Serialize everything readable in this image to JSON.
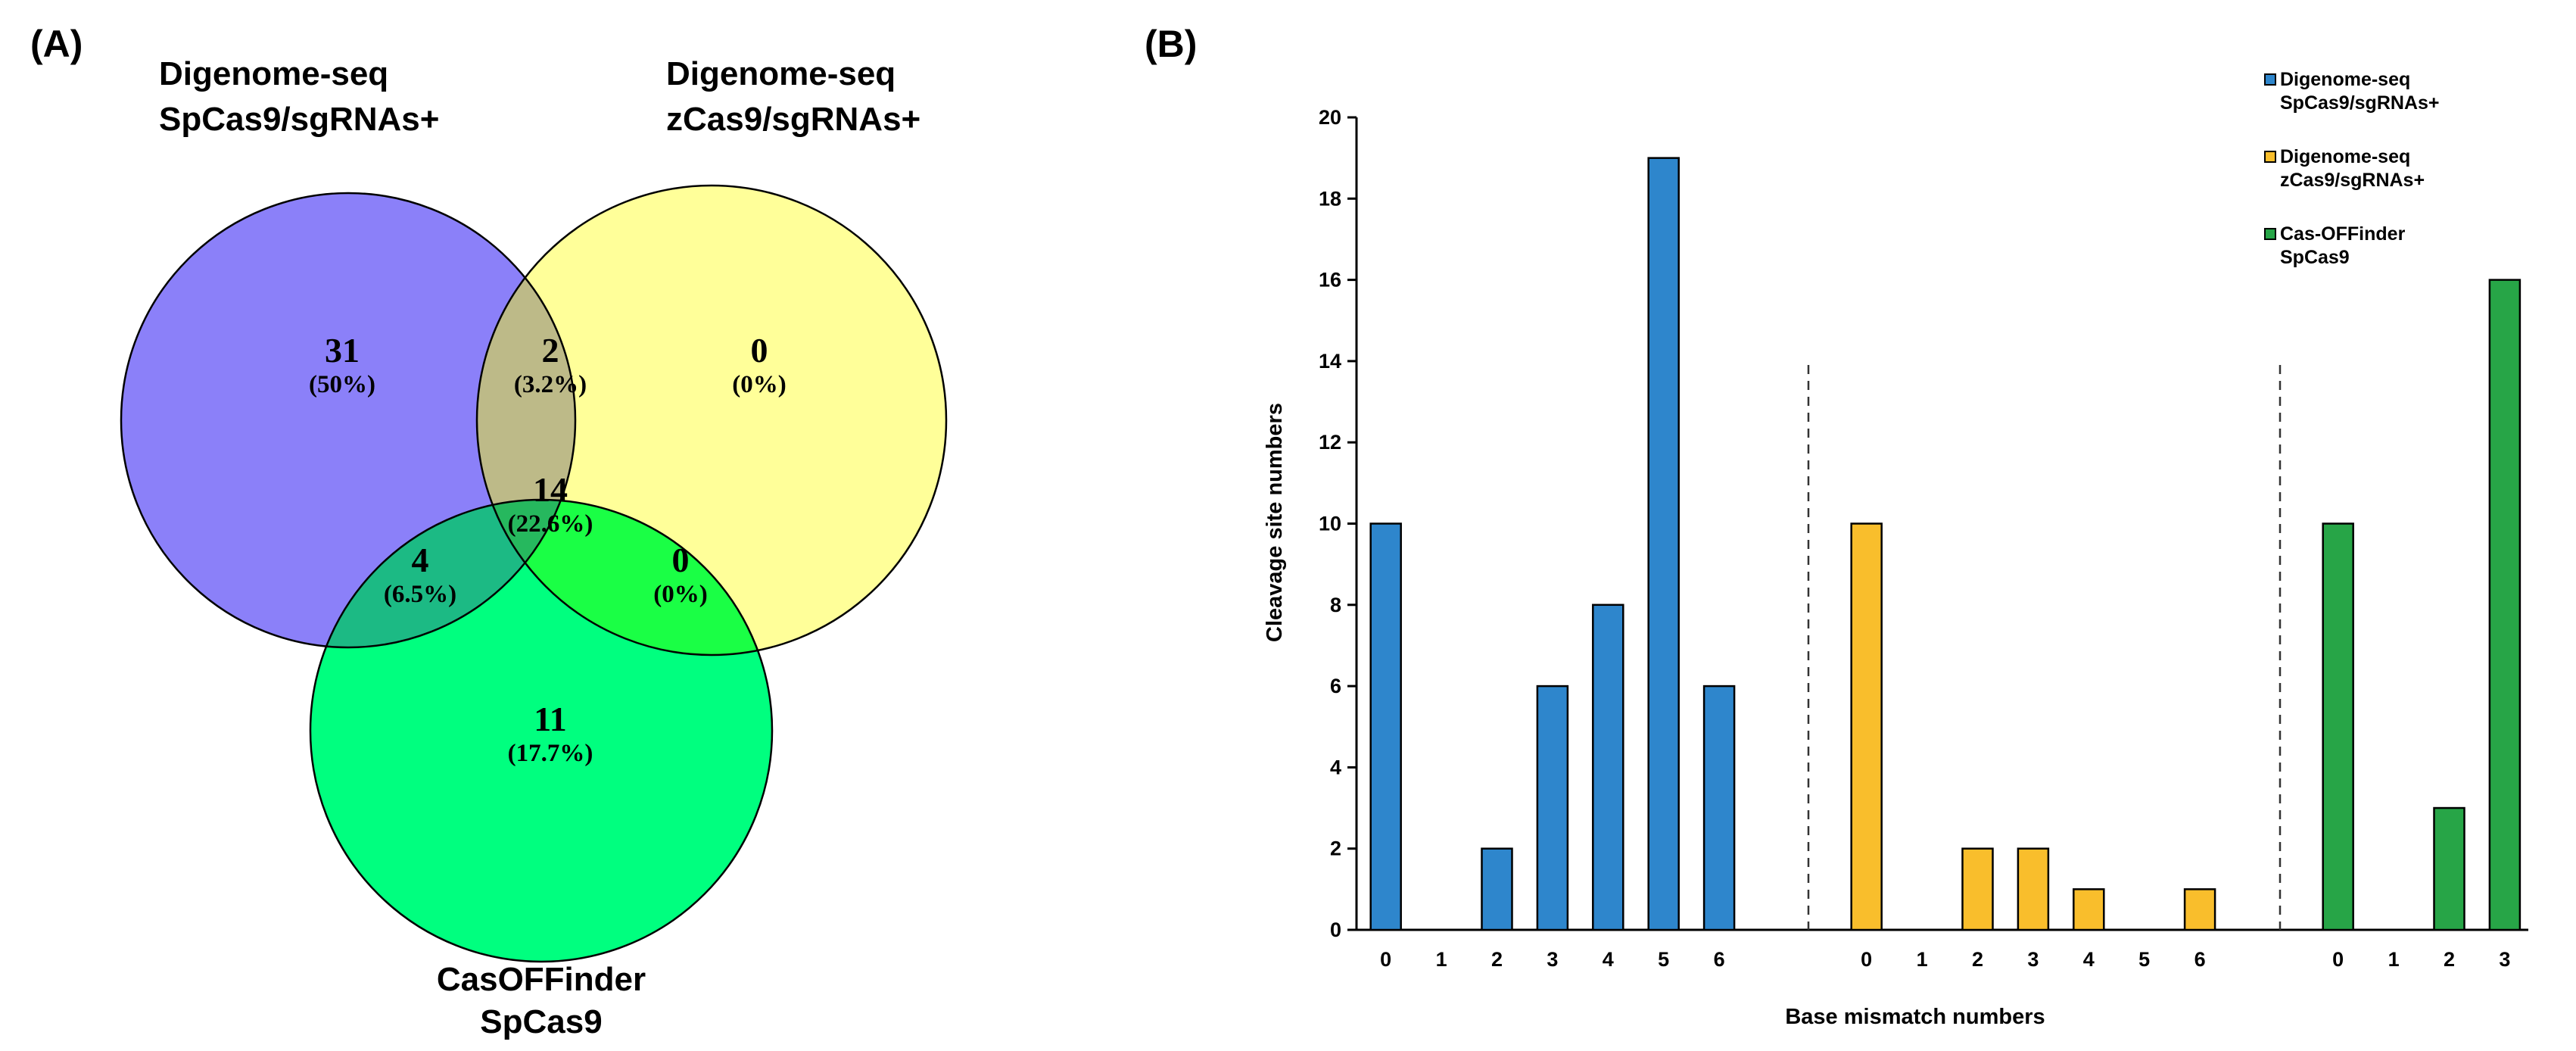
{
  "panel_a": {
    "label": "(A)",
    "sets": {
      "spcas9": {
        "line1": "Digenome-seq",
        "line2": "SpCas9/sgRNAs+"
      },
      "zcas9": {
        "line1": "Digenome-seq",
        "line2": "zCas9/sgRNAs+"
      },
      "casoff": {
        "line1": "CasOFFinder",
        "line2": "SpCas9"
      }
    },
    "regions": {
      "sp_only": {
        "count": "31",
        "pct": "(50%)"
      },
      "sp_z": {
        "count": "2",
        "pct": "(3.2%)"
      },
      "z_only": {
        "count": "0",
        "pct": "(0%)"
      },
      "all": {
        "count": "14",
        "pct": "(22.6%)"
      },
      "sp_c": {
        "count": "4",
        "pct": "(6.5%)"
      },
      "z_c": {
        "count": "0",
        "pct": "(0%)"
      },
      "c_only": {
        "count": "11",
        "pct": "(17.7%)"
      }
    },
    "colors": {
      "sp_only": "#8B80F9",
      "z_only": "#FFFF99",
      "c_only": "#00FF7F",
      "sp_z": "#BDBA88",
      "sp_c": "#1CBA84",
      "z_c": "#1AFF45",
      "all": "#26B85E"
    }
  },
  "panel_b": {
    "label": "(B)",
    "chart_data": {
      "type": "bar",
      "title": "",
      "xlabel": "Base mismatch numbers",
      "ylabel": "Cleavage site numbers",
      "ylim": [
        0,
        20
      ],
      "yticks": [
        0,
        2,
        4,
        6,
        8,
        10,
        12,
        14,
        16,
        18,
        20
      ],
      "grid": false,
      "legend_position": "top-right",
      "series": [
        {
          "name": "Digenome-seq SpCas9/sgRNAs+",
          "legend_line1": "Digenome-seq",
          "legend_line2": "SpCas9/sgRNAs+",
          "color": "#2E86CC",
          "categories": [
            "0",
            "1",
            "2",
            "3",
            "4",
            "5",
            "6"
          ],
          "values": [
            10,
            0,
            2,
            6,
            8,
            19,
            6
          ]
        },
        {
          "name": "Digenome-seq zCas9/sgRNAs+",
          "legend_line1": "Digenome-seq",
          "legend_line2": "zCas9/sgRNAs+",
          "color": "#F9BE2C",
          "categories": [
            "0",
            "1",
            "2",
            "3",
            "4",
            "5",
            "6"
          ],
          "values": [
            10,
            0,
            2,
            2,
            1,
            0,
            1
          ]
        },
        {
          "name": "Cas-OFFinder SpCas9",
          "legend_line1": "Cas-OFFinder",
          "legend_line2": "SpCas9",
          "color": "#27A547",
          "categories": [
            "0",
            "1",
            "2",
            "3"
          ],
          "values": [
            10,
            0,
            3,
            16
          ]
        }
      ]
    }
  }
}
